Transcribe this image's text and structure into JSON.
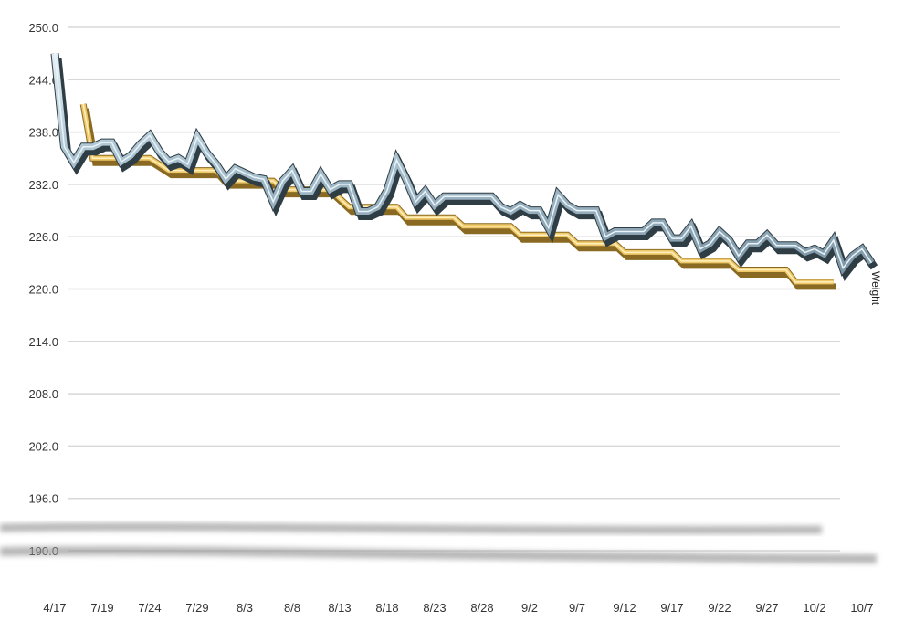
{
  "chart_data": {
    "type": "line",
    "title": "",
    "xlabel": "",
    "ylabel": "",
    "ylim": [
      190,
      250
    ],
    "yticks": [
      "250.0",
      "244.0",
      "238.0",
      "232.0",
      "226.0",
      "220.0",
      "214.0",
      "208.0",
      "202.0",
      "196.0",
      "190.0"
    ],
    "grid": true,
    "x": [
      "4/17",
      "7/15",
      "7/16",
      "7/17",
      "7/18",
      "7/19",
      "7/20",
      "7/21",
      "7/22",
      "7/23",
      "7/24",
      "7/25",
      "7/26",
      "7/27",
      "7/28",
      "7/29",
      "7/30",
      "7/31",
      "8/1",
      "8/2",
      "8/3",
      "8/4",
      "8/5",
      "8/6",
      "8/7",
      "8/8",
      "8/9",
      "8/10",
      "8/11",
      "8/12",
      "8/13",
      "8/14",
      "8/15",
      "8/16",
      "8/17",
      "8/18",
      "8/19",
      "8/20",
      "8/21",
      "8/22",
      "8/23",
      "8/24",
      "8/25",
      "8/26",
      "8/27",
      "8/28",
      "8/29",
      "8/30",
      "8/31",
      "9/1",
      "9/2",
      "9/3",
      "9/4",
      "9/5",
      "9/6",
      "9/7",
      "9/8",
      "9/9",
      "9/10",
      "9/11",
      "9/12",
      "9/13",
      "9/14",
      "9/15",
      "9/16",
      "9/17",
      "9/18",
      "9/19",
      "9/20",
      "9/21",
      "9/22",
      "9/23",
      "9/24",
      "9/25",
      "9/26",
      "9/27",
      "9/28",
      "9/29",
      "9/30",
      "10/1",
      "10/2",
      "10/3",
      "10/4",
      "10/5",
      "10/6",
      "10/7",
      "10/8"
    ],
    "xtick_labels": [
      "4/17",
      "7/19",
      "7/24",
      "7/29",
      "8/3",
      "8/8",
      "8/13",
      "8/18",
      "8/23",
      "8/28",
      "9/2",
      "9/7",
      "9/12",
      "9/17",
      "9/22",
      "9/27",
      "10/2",
      "10/7"
    ],
    "series": [
      {
        "name": "Weight",
        "color": "#9fb7c6",
        "values": [
          247.0,
          236.3,
          234.5,
          236.3,
          236.3,
          236.8,
          236.8,
          234.6,
          235.3,
          236.6,
          237.6,
          235.8,
          234.6,
          235.0,
          234.3,
          237.4,
          235.6,
          234.3,
          232.6,
          233.8,
          233.3,
          232.8,
          232.6,
          230.0,
          232.4,
          233.6,
          231.2,
          231.2,
          233.2,
          231.4,
          232.0,
          232.0,
          228.9,
          228.9,
          229.4,
          231.3,
          234.8,
          232.6,
          230.0,
          231.2,
          229.6,
          230.6,
          230.6,
          230.6,
          230.6,
          230.6,
          230.6,
          229.4,
          228.9,
          229.6,
          229.0,
          229.0,
          227.0,
          230.8,
          229.6,
          229.0,
          229.0,
          229.0,
          226.0,
          226.6,
          226.6,
          226.6,
          226.6,
          227.6,
          227.6,
          225.8,
          225.8,
          227.2,
          224.6,
          225.2,
          226.6,
          225.6,
          223.8,
          225.2,
          225.2,
          226.2,
          225.0,
          225.0,
          225.0,
          224.2,
          224.6,
          224.0,
          225.6,
          222.4,
          223.8,
          224.6,
          223.0
        ]
      },
      {
        "name": "",
        "color": "#efc86a",
        "values": [
          null,
          null,
          null,
          241.2,
          235.0,
          235.0,
          235.0,
          235.0,
          235.0,
          235.0,
          235.0,
          234.3,
          233.6,
          233.6,
          233.6,
          233.6,
          233.6,
          233.6,
          232.4,
          232.4,
          232.4,
          232.4,
          232.4,
          232.4,
          231.4,
          231.4,
          231.4,
          231.4,
          231.4,
          231.4,
          230.4,
          229.4,
          229.4,
          229.4,
          229.4,
          229.4,
          229.4,
          228.2,
          228.2,
          228.2,
          228.2,
          228.2,
          228.2,
          227.2,
          227.2,
          227.2,
          227.2,
          227.2,
          227.2,
          226.2,
          226.2,
          226.2,
          226.2,
          226.2,
          226.2,
          225.2,
          225.2,
          225.2,
          225.2,
          225.2,
          224.2,
          224.2,
          224.2,
          224.2,
          224.2,
          224.2,
          223.2,
          223.2,
          223.2,
          223.2,
          223.2,
          223.2,
          222.2,
          222.2,
          222.2,
          222.2,
          222.2,
          222.2,
          220.8,
          220.8,
          220.8,
          220.8,
          220.8,
          null,
          null,
          null,
          null
        ]
      }
    ],
    "legend": "inline-end"
  }
}
